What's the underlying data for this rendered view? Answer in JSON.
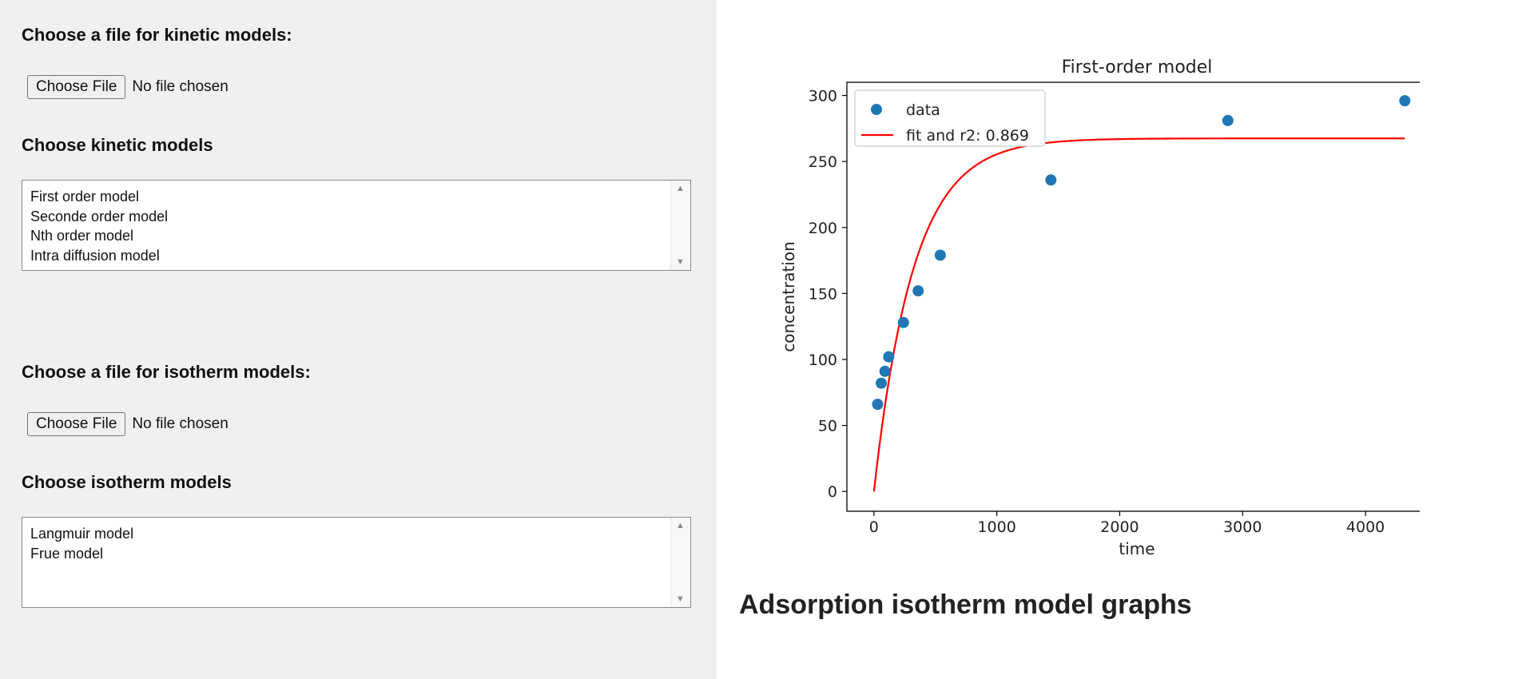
{
  "kinetic": {
    "heading": "Choose a file for kinetic models:",
    "file_button": "Choose File",
    "file_status": "No file chosen",
    "models_heading": "Choose kinetic models",
    "models": [
      "First order model",
      "Seconde order model",
      "Nth order model",
      "Intra diffusion model"
    ]
  },
  "isotherm": {
    "heading": "Choose a file for isotherm models:",
    "file_button": "Choose File",
    "file_status": "No file chosen",
    "models_heading": "Choose isotherm models",
    "models": [
      "Langmuir model",
      "Frue model"
    ]
  },
  "right": {
    "isotherm_graphs_heading": "Adsorption isotherm model graphs"
  },
  "icons": {
    "scroll_up": "▲",
    "scroll_down": "▼"
  },
  "chart_data": {
    "type": "scatter",
    "title": "First-order model",
    "xlabel": "time",
    "ylabel": "concentration",
    "xlim": [
      -220,
      4500
    ],
    "ylim": [
      -15,
      310
    ],
    "xticks": [
      0,
      1000,
      2000,
      3000,
      4000
    ],
    "yticks": [
      0,
      50,
      100,
      150,
      200,
      250,
      300
    ],
    "legend_position": "upper-left",
    "colors": {
      "data": "#1f77b4",
      "fit": "#ff0000"
    },
    "series": [
      {
        "name": "data",
        "kind": "scatter",
        "x": [
          30,
          60,
          90,
          120,
          240,
          360,
          540,
          1440,
          2880,
          4320
        ],
        "y": [
          66,
          82,
          91,
          102,
          128,
          152,
          179,
          236,
          281,
          296
        ]
      },
      {
        "name": "fit and r2: 0.869",
        "kind": "line",
        "model": {
          "qe": 267.5,
          "k": 0.0031
        },
        "x_range": [
          0,
          4320
        ]
      }
    ]
  }
}
